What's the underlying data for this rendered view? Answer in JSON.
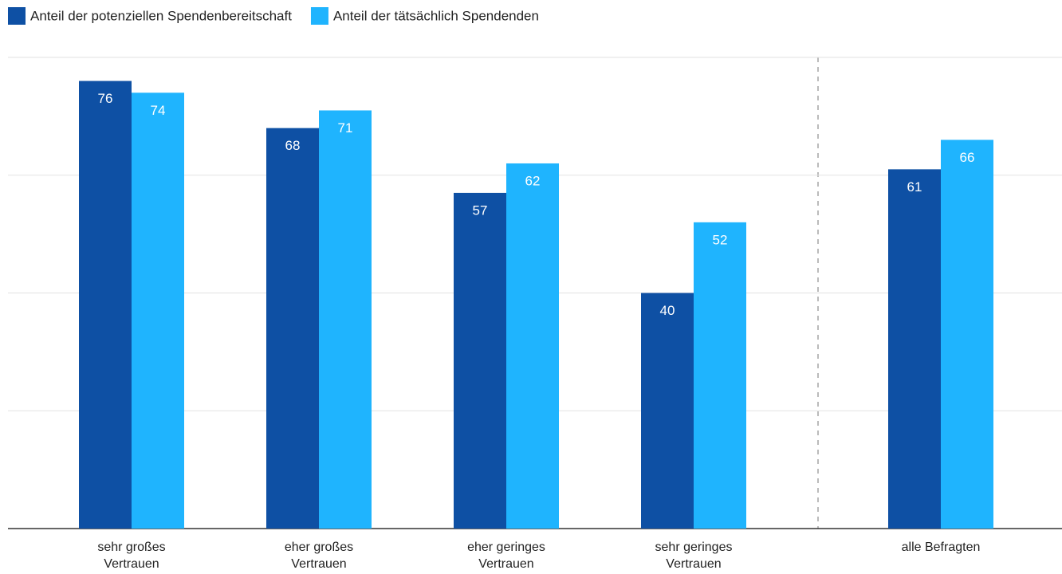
{
  "chart_data": {
    "type": "bar",
    "categories": [
      "sehr großes Vertrauen",
      "eher großes Vertrauen",
      "eher geringes Vertrauen",
      "sehr geringes Vertrauen",
      "alle Befragten"
    ],
    "series": [
      {
        "name": "Anteil der potenziellen Spendenbereitschaft",
        "color": "#0e50a4",
        "values": [
          76,
          68,
          57,
          40,
          61
        ]
      },
      {
        "name": "Anteil der tätsächlich Spendenden",
        "color": "#1fb4fe",
        "values": [
          74,
          71,
          62,
          52,
          66
        ]
      }
    ],
    "ylim": [
      0,
      80
    ],
    "yticks": [
      0,
      20,
      40,
      60,
      80
    ],
    "grid": true,
    "legend": "top"
  }
}
